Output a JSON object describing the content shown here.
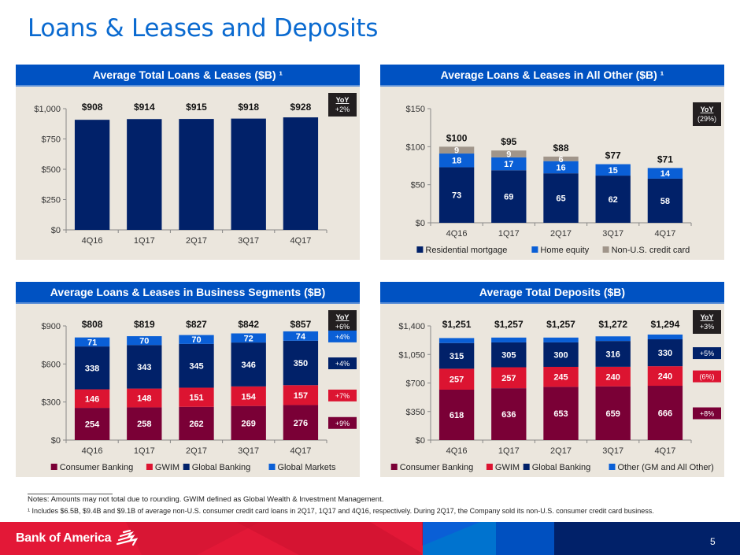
{
  "page": {
    "title": "Loans & Leases and Deposits",
    "page_number": "5",
    "brand": "Bank of America",
    "notes": "Notes: Amounts may not total due to rounding. GWIM defined as Global Wealth & Investment Management.",
    "footnote_1": "¹ Includes $6.5B, $9.4B and $9.1B of average non-U.S. consumer credit card loans in 2Q17, 1Q17 and 4Q16, respectively. During 2Q17, the Company sold its non-U.S. consumer credit card business.",
    "colors": {
      "title_blue": "#0a6ad0",
      "header_blue": "#0052c2",
      "panel_bg": "#ebe6dd",
      "navy": "#012169",
      "maroon": "#7a0036",
      "red": "#dc1431",
      "bright_blue": "#0a5fd6",
      "gray": "#a0958a",
      "yoy_box": "#231f20"
    }
  },
  "chart_data": [
    {
      "id": "total_loans",
      "type": "bar",
      "title": "Average Total Loans & Leases ($B) ¹",
      "categories": [
        "4Q16",
        "1Q17",
        "2Q17",
        "3Q17",
        "4Q17"
      ],
      "series": [
        {
          "name": "Total",
          "values": [
            908,
            914,
            915,
            918,
            928
          ],
          "color": "#012169"
        }
      ],
      "totals_labels": [
        "$908",
        "$914",
        "$915",
        "$918",
        "$928"
      ],
      "yticks": [
        0,
        250,
        500,
        750,
        1000
      ],
      "ytick_labels": [
        "$0",
        "$250",
        "$500",
        "$750",
        "$1,000"
      ],
      "ylim": [
        0,
        1000
      ],
      "xlabel": "",
      "ylabel": "",
      "legend": [],
      "yoy": {
        "label": "YoY",
        "value": "+2%"
      },
      "segment_yoy": []
    },
    {
      "id": "all_other",
      "type": "bar",
      "stacked": true,
      "title": "Average Loans & Leases in All Other ($B) ¹",
      "categories": [
        "4Q16",
        "1Q17",
        "2Q17",
        "3Q17",
        "4Q17"
      ],
      "series": [
        {
          "name": "Residential mortgage",
          "values": [
            73,
            69,
            65,
            62,
            58
          ],
          "color": "#012169",
          "show_labels": true
        },
        {
          "name": "Home equity",
          "values": [
            18,
            17,
            16,
            15,
            14
          ],
          "color": "#0a5fd6",
          "show_labels": true
        },
        {
          "name": "Non-U.S. credit card",
          "values": [
            9,
            9,
            6,
            0,
            0
          ],
          "color": "#a0958a",
          "show_labels": true
        }
      ],
      "totals_labels": [
        "$100",
        "$95",
        "$88",
        "$77",
        "$71"
      ],
      "yticks": [
        0,
        50,
        100,
        150
      ],
      "ytick_labels": [
        "$0",
        "$50",
        "$100",
        "$150"
      ],
      "ylim": [
        0,
        150
      ],
      "xlabel": "",
      "ylabel": "",
      "legend_position": "bottom",
      "yoy": {
        "label": "YoY",
        "value": "(29%)"
      },
      "segment_yoy": []
    },
    {
      "id": "business_segments",
      "type": "bar",
      "stacked": true,
      "title": "Average Loans & Leases in Business Segments ($B)",
      "categories": [
        "4Q16",
        "1Q17",
        "2Q17",
        "3Q17",
        "4Q17"
      ],
      "series": [
        {
          "name": "Consumer Banking",
          "values": [
            254,
            258,
            262,
            269,
            276
          ],
          "color": "#7a0036",
          "show_labels": true
        },
        {
          "name": "GWIM",
          "values": [
            146,
            148,
            151,
            154,
            157
          ],
          "color": "#dc1431",
          "show_labels": true
        },
        {
          "name": "Global Banking",
          "values": [
            338,
            343,
            345,
            346,
            350
          ],
          "color": "#012169",
          "show_labels": true
        },
        {
          "name": "Global Markets",
          "values": [
            71,
            70,
            70,
            72,
            74
          ],
          "color": "#0a5fd6",
          "show_labels": true
        }
      ],
      "totals_labels": [
        "$808",
        "$819",
        "$827",
        "$842",
        "$857"
      ],
      "yticks": [
        0,
        300,
        600,
        900
      ],
      "ytick_labels": [
        "$0",
        "$300",
        "$600",
        "$900"
      ],
      "ylim": [
        0,
        900
      ],
      "xlabel": "",
      "ylabel": "",
      "legend_position": "bottom",
      "yoy": {
        "label": "YoY",
        "value": "+6%"
      },
      "segment_yoy": [
        {
          "series": "Global Markets",
          "value": "+4%"
        },
        {
          "series": "Global Banking",
          "value": "+4%"
        },
        {
          "series": "GWIM",
          "value": "+7%"
        },
        {
          "series": "Consumer Banking",
          "value": "+9%"
        }
      ]
    },
    {
      "id": "total_deposits",
      "type": "bar",
      "stacked": true,
      "title": "Average Total Deposits ($B)",
      "categories": [
        "4Q16",
        "1Q17",
        "2Q17",
        "3Q17",
        "4Q17"
      ],
      "series": [
        {
          "name": "Consumer Banking",
          "values": [
            618,
            636,
            653,
            659,
            666
          ],
          "color": "#7a0036",
          "show_labels": true
        },
        {
          "name": "GWIM",
          "values": [
            257,
            257,
            245,
            240,
            240
          ],
          "color": "#dc1431",
          "show_labels": true
        },
        {
          "name": "Global Banking",
          "values": [
            315,
            305,
            300,
            316,
            330
          ],
          "color": "#012169",
          "show_labels": true
        },
        {
          "name": "Other (GM and All Other)",
          "values": [
            61,
            59,
            59,
            57,
            58
          ],
          "color": "#0a5fd6",
          "show_labels": false
        }
      ],
      "totals_labels": [
        "$1,251",
        "$1,257",
        "$1,257",
        "$1,272",
        "$1,294"
      ],
      "yticks": [
        0,
        350,
        700,
        1050,
        1400
      ],
      "ytick_labels": [
        "$0",
        "$350",
        "$700",
        "$1,050",
        "$1,400"
      ],
      "ylim": [
        0,
        1400
      ],
      "xlabel": "",
      "ylabel": "",
      "legend_position": "bottom",
      "yoy": {
        "label": "YoY",
        "value": "+3%"
      },
      "segment_yoy": [
        {
          "series": "Global Banking",
          "value": "+5%"
        },
        {
          "series": "GWIM",
          "value": "(6%)"
        },
        {
          "series": "Consumer Banking",
          "value": "+8%"
        }
      ]
    }
  ]
}
